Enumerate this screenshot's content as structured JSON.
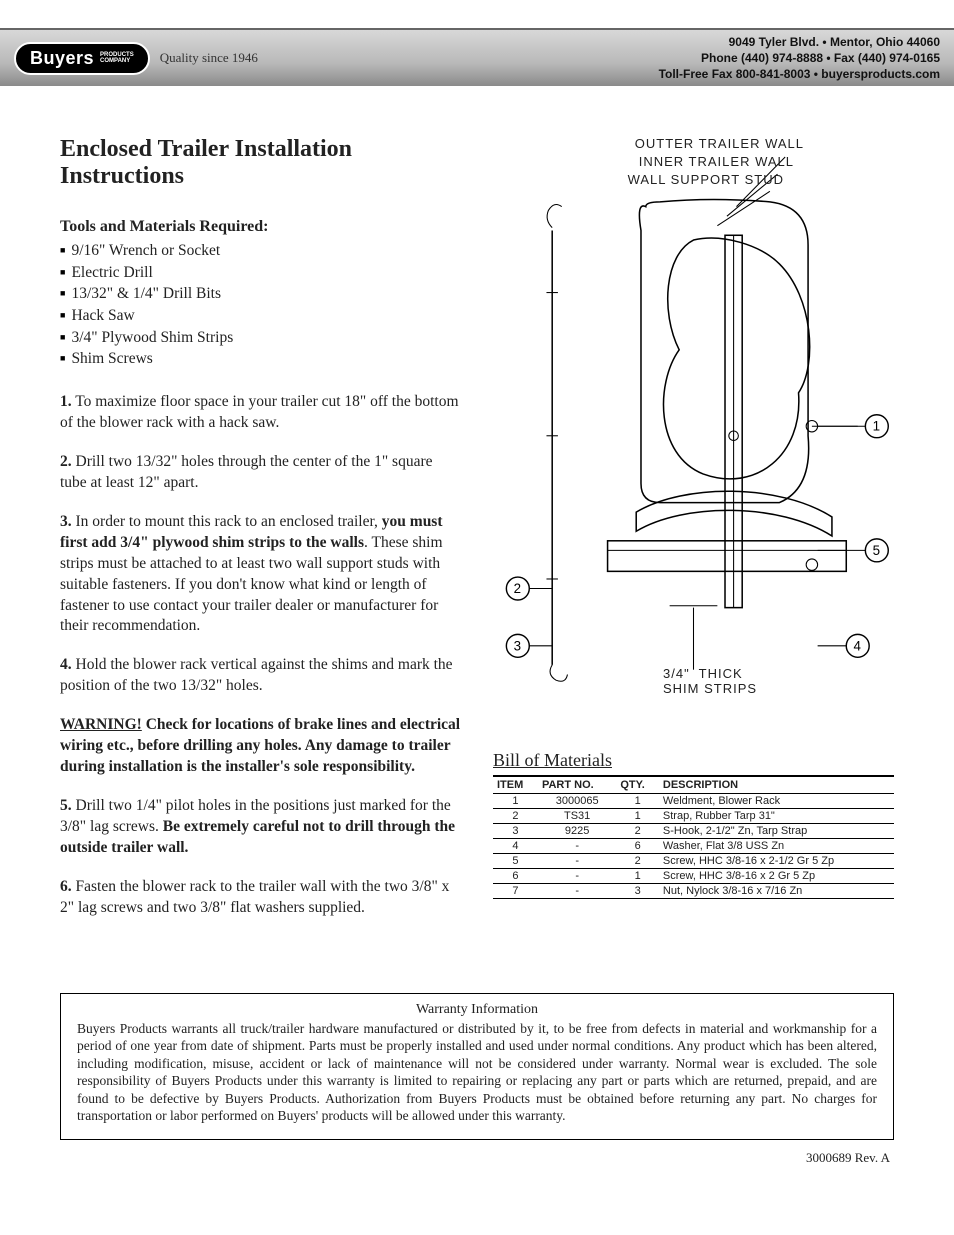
{
  "header": {
    "logo_main": "Buyers",
    "logo_sub1": "PRODUCTS",
    "logo_sub2": "COMPANY",
    "tagline": "Quality since 1946",
    "addr_line1": "9049 Tyler Blvd. • Mentor, Ohio 44060",
    "addr_line2": "Phone (440) 974-8888 • Fax (440) 974-0165",
    "addr_line3": "Toll-Free Fax 800-841-8003 • buyersproducts.com"
  },
  "title": "Enclosed Trailer Installation Instructions",
  "tools_heading": "Tools and Materials Required:",
  "tools": [
    "9/16\" Wrench or Socket",
    "Electric Drill",
    "13/32\" & 1/4\" Drill Bits",
    "Hack Saw",
    "3/4\" Plywood Shim Strips",
    "Shim Screws"
  ],
  "steps": {
    "s1_num": "1.",
    "s1": "  To maximize floor space in your trailer cut 18\" off the bottom of the blower rack with a hack saw.",
    "s2_num": "2.",
    "s2": "  Drill two 13/32\" holes through the center of the 1\" square tube at least 12\" apart.",
    "s3_num": "3.",
    "s3a": "  In order to mount this rack to an enclosed trailer, ",
    "s3b": "you must first add 3/4\" plywood shim strips to the walls",
    "s3c": ". These shim strips must be attached to at least two wall support studs with suitable fasteners. If you don't know what kind or length of fastener to use contact your trailer dealer or manufacturer for their recommendation.",
    "s4_num": "4.",
    "s4": "  Hold the blower rack vertical against the shims and mark the position of the two 13/32\" holes.",
    "warn_label": "WARNING!",
    "warn_body": " Check for locations of brake lines and electrical wiring etc., before drilling any holes. Any damage to trailer during installation is the installer's sole responsibility.",
    "s5_num": "5.",
    "s5a": "  Drill two 1/4\" pilot holes in the positions just marked for the 3/8\" lag screws. ",
    "s5b": "Be extremely careful not to drill through the outside trailer wall.",
    "s6_num": "6.",
    "s6": "  Fasten the blower rack to the trailer wall with the two 3/8\" x 2\" lag screws and two 3/8\" flat washers supplied."
  },
  "diagram_labels": {
    "outer": "OUTTER TRAILER WALL",
    "inner": "INNER TRAILER WALL",
    "stud": "WALL SUPPORT STUD",
    "shim": "3/4\"  THICK\nSHIM STRIPS"
  },
  "bom": {
    "title": "Bill of Materials",
    "columns": [
      "ITEM",
      "PART NO.",
      "QTY.",
      "DESCRIPTION"
    ],
    "rows": [
      [
        "1",
        "3000065",
        "1",
        "Weldment, Blower Rack"
      ],
      [
        "2",
        "TS31",
        "1",
        "Strap, Rubber Tarp 31\""
      ],
      [
        "3",
        "9225",
        "2",
        "S-Hook, 2-1/2\" Zn, Tarp Strap"
      ],
      [
        "4",
        "-",
        "6",
        "Washer, Flat 3/8 USS Zn"
      ],
      [
        "5",
        "-",
        "2",
        "Screw, HHC 3/8-16 x 2-1/2 Gr 5 Zp"
      ],
      [
        "6",
        "-",
        "1",
        "Screw, HHC 3/8-16 x 2 Gr 5 Zp"
      ],
      [
        "7",
        "-",
        "3",
        "Nut, Nylock 3/8-16 x 7/16 Zn"
      ]
    ]
  },
  "warranty": {
    "title": "Warranty Information",
    "body": "Buyers Products warrants all truck/trailer hardware manufactured or distributed by it, to be free from defects in material and workmanship for a period of one year from date of shipment. Parts must be properly installed and used under normal conditions. Any product which has been altered, including modification, misuse, accident or lack of maintenance will not be considered under warranty. Normal wear is excluded. The sole responsibility of Buyers Products under this warranty is limited to repairing or replacing any part or parts which are returned, prepaid, and are found to be defective by Buyers Products. Authorization from Buyers Products must be obtained before returning any part. No charges for transportation or labor performed on Buyers' products will be allowed under this warranty."
  },
  "footer_rev": "3000689  Rev. A",
  "colors": {
    "header_grad_top": "#d8d8d8",
    "header_grad_bot": "#8a8a8a",
    "text": "#222222",
    "rule": "#000000"
  }
}
